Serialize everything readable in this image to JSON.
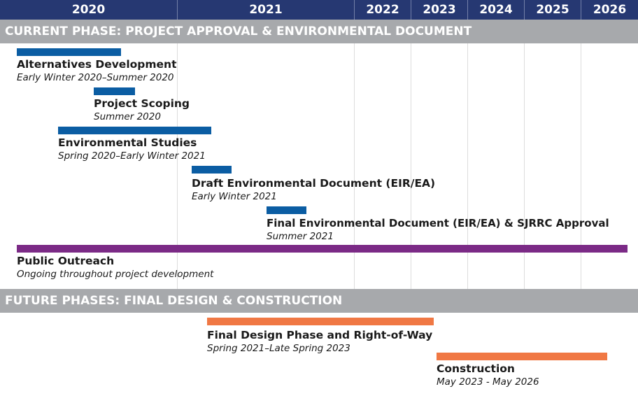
{
  "years": [
    "2020",
    "2021",
    "2022",
    "2023",
    "2024",
    "2025",
    "2026"
  ],
  "phases": {
    "current": "CURRENT PHASE: PROJECT APPROVAL & ENVIRONMENTAL DOCUMENT",
    "future": "FUTURE PHASES: FINAL DESIGN & CONSTRUCTION"
  },
  "tasks": [
    {
      "title": "Alternatives Development",
      "dates": "Early Winter 2020–Summer 2020",
      "color": "#0b5da3"
    },
    {
      "title": "Project Scoping",
      "dates": "Summer 2020",
      "color": "#0b5da3"
    },
    {
      "title": "Environmental Studies",
      "dates": "Spring 2020–Early Winter 2021",
      "color": "#0b5da3"
    },
    {
      "title": "Draft Environmental Document (EIR/EA)",
      "dates": "Early Winter 2021",
      "color": "#0b5da3"
    },
    {
      "title": "Final Environmental Document (EIR/EA) & SJRRC Approval",
      "dates": "Summer 2021",
      "color": "#0b5da3"
    },
    {
      "title": "Public Outreach",
      "dates": "Ongoing throughout project development",
      "color": "#7b2a86"
    },
    {
      "title": "Final Design Phase and Right-of-Way",
      "dates": "Spring 2021–Late Spring 2023",
      "color": "#f07844"
    },
    {
      "title": "Construction",
      "dates": "May 2023 - May 2026",
      "color": "#f07844"
    }
  ],
  "colors": {
    "header_bg": "#263872",
    "phase_banner": "#a7a9ac",
    "environmental_tasks": "#0b5da3",
    "outreach": "#7b2a86",
    "construction_tasks": "#f07844"
  }
}
